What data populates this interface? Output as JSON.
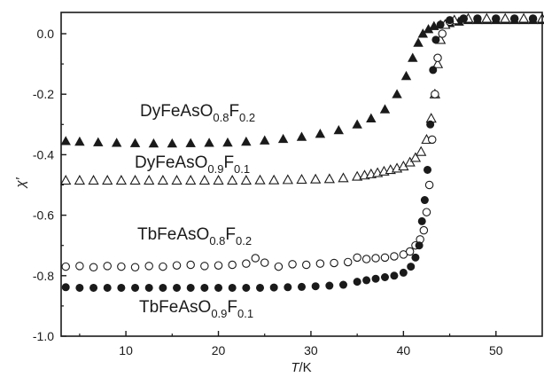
{
  "chart_data": {
    "type": "scatter",
    "title": "",
    "xlabel_italic": "T",
    "xlabel_unit": "/K",
    "ylabel": "χ′",
    "xlim": [
      3,
      55
    ],
    "ylim": [
      -1.0,
      0.05
    ],
    "x_ticks": [
      10,
      20,
      30,
      40,
      50
    ],
    "y_ticks": [
      {
        "value": 0.0,
        "label": "0.0"
      },
      {
        "value": -0.2,
        "label": "-0.2"
      },
      {
        "value": -0.4,
        "label": "-0.4"
      },
      {
        "value": -0.6,
        "label": "-0.6"
      },
      {
        "value": -0.8,
        "label": "-0.8"
      },
      {
        "value": -1.0,
        "label": "-1.0"
      }
    ],
    "grid": false,
    "series": [
      {
        "key": "dy02",
        "marker": "filled-triangle",
        "label_parts": [
          [
            "DyFeAsO",
            ""
          ],
          [
            "0.8",
            "sub"
          ],
          [
            "F",
            ""
          ],
          [
            "0.2",
            "sub"
          ]
        ],
        "points": [
          [
            3.5,
            -0.355
          ],
          [
            5,
            -0.357
          ],
          [
            7,
            -0.359
          ],
          [
            9,
            -0.361
          ],
          [
            11,
            -0.362
          ],
          [
            13,
            -0.363
          ],
          [
            15,
            -0.363
          ],
          [
            17,
            -0.362
          ],
          [
            19,
            -0.361
          ],
          [
            21,
            -0.36
          ],
          [
            23,
            -0.357
          ],
          [
            25,
            -0.353
          ],
          [
            27,
            -0.348
          ],
          [
            29,
            -0.341
          ],
          [
            31,
            -0.331
          ],
          [
            33,
            -0.319
          ],
          [
            35,
            -0.3
          ],
          [
            36.5,
            -0.28
          ],
          [
            38,
            -0.25
          ],
          [
            39.3,
            -0.2
          ],
          [
            40.3,
            -0.14
          ],
          [
            41,
            -0.08
          ],
          [
            41.6,
            -0.03
          ],
          [
            42.1,
            0.0
          ],
          [
            42.7,
            0.015
          ],
          [
            43.3,
            0.025
          ],
          [
            44,
            0.03
          ],
          [
            45,
            0.035
          ],
          [
            46,
            0.04
          ],
          [
            47,
            0.045
          ],
          [
            48,
            0.045
          ],
          [
            49,
            0.045
          ],
          [
            50,
            0.045
          ],
          [
            51,
            0.045
          ],
          [
            52,
            0.045
          ],
          [
            53,
            0.045
          ],
          [
            54,
            0.045
          ],
          [
            55,
            0.045
          ]
        ]
      },
      {
        "key": "dy01",
        "marker": "open-triangle",
        "label_parts": [
          [
            "DyFeAsO",
            ""
          ],
          [
            "0.9",
            "sub"
          ],
          [
            "F",
            ""
          ],
          [
            "0.1",
            "sub"
          ]
        ],
        "points": [
          [
            3.5,
            -0.485
          ],
          [
            5,
            -0.485
          ],
          [
            6.5,
            -0.485
          ],
          [
            8,
            -0.485
          ],
          [
            9.5,
            -0.485
          ],
          [
            11,
            -0.485
          ],
          [
            12.5,
            -0.485
          ],
          [
            14,
            -0.485
          ],
          [
            15.5,
            -0.485
          ],
          [
            17,
            -0.485
          ],
          [
            18.5,
            -0.485
          ],
          [
            20,
            -0.485
          ],
          [
            21.5,
            -0.485
          ],
          [
            23,
            -0.485
          ],
          [
            24.5,
            -0.484
          ],
          [
            26,
            -0.484
          ],
          [
            27.5,
            -0.483
          ],
          [
            29,
            -0.482
          ],
          [
            30.5,
            -0.481
          ],
          [
            32,
            -0.48
          ],
          [
            33.5,
            -0.477
          ],
          [
            35,
            -0.472
          ],
          [
            35.8,
            -0.468
          ],
          [
            36.5,
            -0.464
          ],
          [
            37.2,
            -0.46
          ],
          [
            37.9,
            -0.455
          ],
          [
            38.6,
            -0.45
          ],
          [
            39.3,
            -0.445
          ],
          [
            40,
            -0.438
          ],
          [
            40.7,
            -0.425
          ],
          [
            41.3,
            -0.41
          ],
          [
            41.9,
            -0.39
          ],
          [
            42.5,
            -0.35
          ],
          [
            43,
            -0.28
          ],
          [
            43.4,
            -0.2
          ],
          [
            43.7,
            -0.1
          ],
          [
            44,
            -0.02
          ],
          [
            44.5,
            0.03
          ],
          [
            45.5,
            0.045
          ],
          [
            47,
            0.05
          ],
          [
            49,
            0.05
          ],
          [
            51,
            0.05
          ],
          [
            53,
            0.05
          ],
          [
            55,
            0.05
          ]
        ]
      },
      {
        "key": "tb02",
        "marker": "open-circle",
        "label_parts": [
          [
            "TbFeAsO",
            ""
          ],
          [
            "0.8",
            "sub"
          ],
          [
            "F",
            ""
          ],
          [
            "0.2",
            "sub"
          ]
        ],
        "points": [
          [
            3.5,
            -0.77
          ],
          [
            5,
            -0.768
          ],
          [
            6.5,
            -0.772
          ],
          [
            8,
            -0.768
          ],
          [
            9.5,
            -0.77
          ],
          [
            11,
            -0.772
          ],
          [
            12.5,
            -0.768
          ],
          [
            14,
            -0.77
          ],
          [
            15.5,
            -0.766
          ],
          [
            17,
            -0.764
          ],
          [
            18.5,
            -0.768
          ],
          [
            20,
            -0.766
          ],
          [
            21.5,
            -0.764
          ],
          [
            23,
            -0.76
          ],
          [
            24,
            -0.742
          ],
          [
            25,
            -0.757
          ],
          [
            26.5,
            -0.77
          ],
          [
            28,
            -0.762
          ],
          [
            29.5,
            -0.764
          ],
          [
            31,
            -0.76
          ],
          [
            32.5,
            -0.758
          ],
          [
            34,
            -0.755
          ],
          [
            35,
            -0.74
          ],
          [
            36,
            -0.745
          ],
          [
            37,
            -0.742
          ],
          [
            38,
            -0.74
          ],
          [
            39,
            -0.736
          ],
          [
            40,
            -0.73
          ],
          [
            40.7,
            -0.72
          ],
          [
            41.3,
            -0.7
          ],
          [
            41.8,
            -0.68
          ],
          [
            42.2,
            -0.65
          ],
          [
            42.5,
            -0.59
          ],
          [
            42.8,
            -0.5
          ],
          [
            43.1,
            -0.35
          ],
          [
            43.4,
            -0.2
          ],
          [
            43.7,
            -0.08
          ],
          [
            44.2,
            0.0
          ],
          [
            45,
            0.04
          ],
          [
            46.5,
            0.05
          ],
          [
            48,
            0.05
          ],
          [
            50,
            0.05
          ],
          [
            52,
            0.05
          ],
          [
            54,
            0.05
          ]
        ]
      },
      {
        "key": "tb01",
        "marker": "filled-circle",
        "label_parts": [
          [
            "TbFeAsO",
            ""
          ],
          [
            "0.9",
            "sub"
          ],
          [
            "F",
            ""
          ],
          [
            "0.1",
            "sub"
          ]
        ],
        "points": [
          [
            3.5,
            -0.838
          ],
          [
            5,
            -0.84
          ],
          [
            6.5,
            -0.84
          ],
          [
            8,
            -0.84
          ],
          [
            9.5,
            -0.84
          ],
          [
            11,
            -0.84
          ],
          [
            12.5,
            -0.84
          ],
          [
            14,
            -0.84
          ],
          [
            15.5,
            -0.84
          ],
          [
            17,
            -0.84
          ],
          [
            18.5,
            -0.84
          ],
          [
            20,
            -0.84
          ],
          [
            21.5,
            -0.84
          ],
          [
            23,
            -0.84
          ],
          [
            24.5,
            -0.84
          ],
          [
            26,
            -0.839
          ],
          [
            27.5,
            -0.838
          ],
          [
            29,
            -0.837
          ],
          [
            30.5,
            -0.835
          ],
          [
            32,
            -0.833
          ],
          [
            33.5,
            -0.83
          ],
          [
            35,
            -0.82
          ],
          [
            36,
            -0.815
          ],
          [
            37,
            -0.81
          ],
          [
            38,
            -0.805
          ],
          [
            39,
            -0.8
          ],
          [
            40,
            -0.79
          ],
          [
            40.8,
            -0.77
          ],
          [
            41.3,
            -0.74
          ],
          [
            41.7,
            -0.7
          ],
          [
            42,
            -0.62
          ],
          [
            42.3,
            -0.55
          ],
          [
            42.6,
            -0.45
          ],
          [
            42.9,
            -0.3
          ],
          [
            43.2,
            -0.12
          ],
          [
            43.5,
            -0.02
          ],
          [
            44,
            0.03
          ],
          [
            45,
            0.045
          ],
          [
            46.5,
            0.05
          ],
          [
            48,
            0.05
          ],
          [
            50,
            0.05
          ],
          [
            52,
            0.05
          ],
          [
            54,
            0.05
          ]
        ]
      }
    ]
  }
}
